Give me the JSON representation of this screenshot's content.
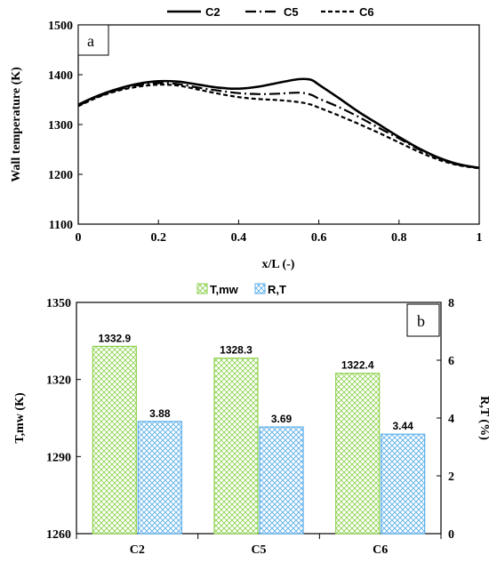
{
  "chart_data": [
    {
      "type": "line",
      "panel_label": "a",
      "xlabel": "x/L (-)",
      "ylabel": "Wall temperature (K)",
      "xlim": [
        0,
        1
      ],
      "ylim": [
        1100,
        1500
      ],
      "xticks": [
        "0",
        "0.2",
        "0.4",
        "0.6",
        "0.8",
        "1"
      ],
      "yticks": [
        "1100",
        "1200",
        "1300",
        "1400",
        "1500"
      ],
      "legend_position": "top",
      "series": [
        {
          "name": "C2",
          "style": "solid",
          "x": [
            0,
            0.05,
            0.1,
            0.15,
            0.2,
            0.25,
            0.3,
            0.35,
            0.4,
            0.45,
            0.5,
            0.55,
            0.58,
            0.6,
            0.65,
            0.7,
            0.75,
            0.8,
            0.85,
            0.9,
            0.95,
            1.0
          ],
          "y": [
            1340,
            1358,
            1372,
            1382,
            1387,
            1386,
            1380,
            1374,
            1372,
            1376,
            1384,
            1391,
            1390,
            1380,
            1353,
            1325,
            1300,
            1275,
            1252,
            1233,
            1220,
            1213
          ]
        },
        {
          "name": "C5",
          "style": "dash-dot",
          "x": [
            0,
            0.05,
            0.1,
            0.15,
            0.2,
            0.25,
            0.3,
            0.35,
            0.4,
            0.45,
            0.5,
            0.55,
            0.58,
            0.6,
            0.65,
            0.7,
            0.75,
            0.8,
            0.85,
            0.9,
            0.95,
            1.0
          ],
          "y": [
            1338,
            1356,
            1370,
            1379,
            1383,
            1381,
            1374,
            1368,
            1363,
            1361,
            1362,
            1364,
            1360,
            1352,
            1335,
            1315,
            1293,
            1272,
            1250,
            1232,
            1219,
            1213
          ]
        },
        {
          "name": "C6",
          "style": "dashed",
          "x": [
            0,
            0.05,
            0.1,
            0.15,
            0.2,
            0.25,
            0.3,
            0.35,
            0.4,
            0.45,
            0.5,
            0.55,
            0.58,
            0.6,
            0.65,
            0.7,
            0.75,
            0.8,
            0.85,
            0.9,
            0.95,
            1.0
          ],
          "y": [
            1337,
            1355,
            1368,
            1376,
            1380,
            1378,
            1370,
            1362,
            1355,
            1351,
            1349,
            1345,
            1340,
            1334,
            1318,
            1301,
            1283,
            1264,
            1245,
            1229,
            1218,
            1212
          ]
        }
      ]
    },
    {
      "type": "bar",
      "panel_label": "b",
      "categories": [
        "C2",
        "C5",
        "C6"
      ],
      "ylabel": "T,mw (K)",
      "y2label": "R,T (%)",
      "ylim": [
        1260,
        1350
      ],
      "y2lim": [
        0,
        8
      ],
      "yticks": [
        "1260",
        "1290",
        "1320",
        "1350"
      ],
      "y2ticks": [
        "0",
        "2",
        "4",
        "6",
        "8"
      ],
      "legend_position": "top",
      "series": [
        {
          "name": "T,mw",
          "axis": "left",
          "color": "#8fd14f",
          "values": [
            1332.9,
            1328.3,
            1322.4
          ],
          "labels": [
            "1332.9",
            "1328.3",
            "1322.4"
          ]
        },
        {
          "name": "R,T",
          "axis": "right",
          "color": "#5aaee8",
          "values": [
            3.88,
            3.69,
            3.44
          ],
          "labels": [
            "3.88",
            "3.69",
            "3.44"
          ]
        }
      ]
    }
  ]
}
